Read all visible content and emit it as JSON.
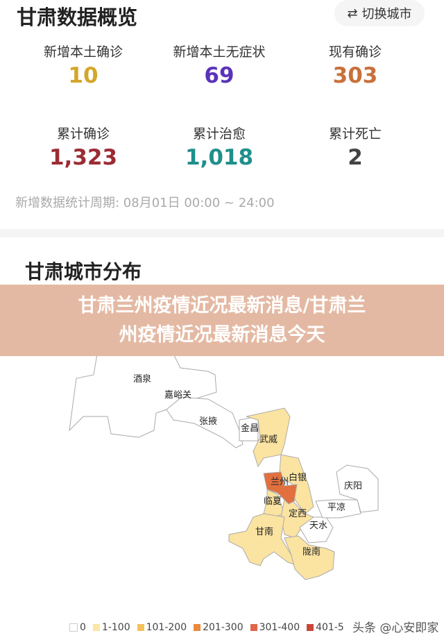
{
  "header": {
    "title": "甘肃数据概览",
    "switch_label": "切换城市",
    "switch_icon": "swap-arrows-icon"
  },
  "stats": [
    {
      "label": "新增本土确诊",
      "value": "10",
      "color": "#d4a62a"
    },
    {
      "label": "新增本土无症状",
      "value": "69",
      "color": "#5b33b8"
    },
    {
      "label": "现有确诊",
      "value": "303",
      "color": "#c9703a"
    },
    {
      "label": "累计确诊",
      "value": "1,323",
      "color": "#9b2c34"
    },
    {
      "label": "累计治愈",
      "value": "1,018",
      "color": "#1f8f8c"
    },
    {
      "label": "累计死亡",
      "value": "2",
      "color": "#444444"
    }
  ],
  "period": "新增数据统计周期:   08月01日 00:00 ~ 24:00",
  "map": {
    "title": "甘肃城市分布",
    "cities": [
      {
        "name": "酒泉",
        "level": "0"
      },
      {
        "name": "嘉峪关",
        "level": "0"
      },
      {
        "name": "张掖",
        "level": "0"
      },
      {
        "name": "金昌",
        "level": "0"
      },
      {
        "name": "武威",
        "level": "1-100"
      },
      {
        "name": "兰州",
        "level": "201-300"
      },
      {
        "name": "白银",
        "level": "1-100"
      },
      {
        "name": "临夏",
        "level": "1-100"
      },
      {
        "name": "定西",
        "level": "1-100"
      },
      {
        "name": "庆阳",
        "level": "0"
      },
      {
        "name": "平凉",
        "level": "0"
      },
      {
        "name": "天水",
        "level": "0"
      },
      {
        "name": "甘南",
        "level": "1-100"
      },
      {
        "name": "陇南",
        "level": "1-100"
      }
    ],
    "legend": [
      {
        "label": "0",
        "color": "#ffffff"
      },
      {
        "label": "1-100",
        "color": "#fbe6a6"
      },
      {
        "label": "101-200",
        "color": "#f5c15a"
      },
      {
        "label": "201-300",
        "color": "#e98a3d"
      },
      {
        "label": "301-400",
        "color": "#e0664a"
      },
      {
        "label": "401-5",
        "color": "#c8473a"
      }
    ]
  },
  "banner": {
    "line1": "甘肃兰州疫情近况最新消息/甘肃兰",
    "line2": "州疫情近况最新消息今天"
  },
  "watermark": "头条 @心安即家"
}
